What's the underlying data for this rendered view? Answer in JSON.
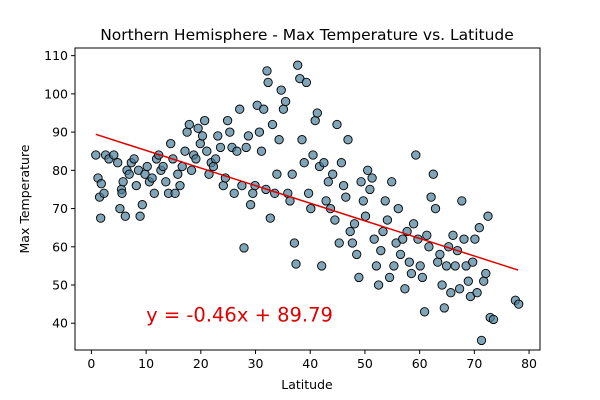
{
  "chart_data": {
    "type": "scatter",
    "title": "Northern Hemisphere - Max Temperature vs. Latitude",
    "xlabel": "Latitude",
    "ylabel": "Max Temperature",
    "xlim": [
      -3,
      82
    ],
    "ylim": [
      33,
      112
    ],
    "xticks": [
      0,
      10,
      20,
      30,
      40,
      50,
      60,
      70,
      80
    ],
    "yticks": [
      40,
      50,
      60,
      70,
      80,
      90,
      100,
      110
    ],
    "grid": false,
    "legend": "none",
    "colors": {
      "point_fill": "#4c7f9a",
      "point_edge": "#000000",
      "regression": "#e00000",
      "annotation": "#e00000"
    },
    "regression": {
      "slope": -0.46,
      "intercept": 89.79,
      "x_start": 0.8,
      "x_end": 78,
      "equation_label": "y = -0.46x + 89.79",
      "label_anchor": [
        10,
        40.4
      ]
    },
    "points": [
      [
        0.8,
        84
      ],
      [
        1.2,
        78
      ],
      [
        1.5,
        73
      ],
      [
        1.7,
        67.5
      ],
      [
        2.3,
        74
      ],
      [
        1.8,
        76.5
      ],
      [
        2.6,
        84
      ],
      [
        3.2,
        83
      ],
      [
        4.1,
        84
      ],
      [
        4.8,
        82
      ],
      [
        5.2,
        70
      ],
      [
        5.5,
        75
      ],
      [
        5.8,
        77
      ],
      [
        5.6,
        74
      ],
      [
        6.2,
        68
      ],
      [
        6.5,
        80
      ],
      [
        6.9,
        79
      ],
      [
        7.3,
        82
      ],
      [
        7.8,
        83
      ],
      [
        8.2,
        76
      ],
      [
        8.6,
        80
      ],
      [
        8.9,
        68
      ],
      [
        9.3,
        71
      ],
      [
        9.8,
        79
      ],
      [
        10.2,
        81
      ],
      [
        10.6,
        77
      ],
      [
        11.1,
        78
      ],
      [
        11.5,
        74
      ],
      [
        11.9,
        83
      ],
      [
        12.3,
        84
      ],
      [
        12.7,
        80
      ],
      [
        13.1,
        81
      ],
      [
        13.6,
        77
      ],
      [
        14.1,
        74
      ],
      [
        14.5,
        87
      ],
      [
        14.9,
        83
      ],
      [
        15.3,
        74
      ],
      [
        15.8,
        79
      ],
      [
        16.2,
        76
      ],
      [
        16.6,
        81
      ],
      [
        17.1,
        85
      ],
      [
        17.5,
        90
      ],
      [
        17.9,
        92
      ],
      [
        18.3,
        80
      ],
      [
        18.7,
        84
      ],
      [
        19.1,
        83
      ],
      [
        19.5,
        91
      ],
      [
        19.9,
        87
      ],
      [
        20.3,
        89
      ],
      [
        20.7,
        93
      ],
      [
        21.1,
        85
      ],
      [
        21.5,
        79
      ],
      [
        21.9,
        82
      ],
      [
        22.3,
        81
      ],
      [
        22.7,
        83
      ],
      [
        23.1,
        89
      ],
      [
        23.6,
        86
      ],
      [
        24.1,
        76
      ],
      [
        24.5,
        78
      ],
      [
        24.9,
        93
      ],
      [
        25.3,
        90
      ],
      [
        25.7,
        86
      ],
      [
        26.1,
        74
      ],
      [
        26.6,
        85
      ],
      [
        27.1,
        96
      ],
      [
        27.5,
        76
      ],
      [
        27.9,
        59.7
      ],
      [
        28.3,
        86
      ],
      [
        28.7,
        89
      ],
      [
        29.1,
        71
      ],
      [
        29.5,
        74
      ],
      [
        29.9,
        76
      ],
      [
        30.3,
        97
      ],
      [
        30.7,
        90
      ],
      [
        31.1,
        85
      ],
      [
        31.5,
        96
      ],
      [
        31.9,
        75
      ],
      [
        32.1,
        106
      ],
      [
        32.3,
        103
      ],
      [
        32.7,
        67.5
      ],
      [
        33.1,
        92
      ],
      [
        33.5,
        74
      ],
      [
        33.9,
        79
      ],
      [
        34.3,
        88
      ],
      [
        34.7,
        101
      ],
      [
        35.1,
        96
      ],
      [
        35.5,
        98
      ],
      [
        35.9,
        74
      ],
      [
        36.3,
        72
      ],
      [
        36.7,
        79
      ],
      [
        37.1,
        61
      ],
      [
        37.4,
        55.5
      ],
      [
        37.7,
        107.5
      ],
      [
        38.1,
        104
      ],
      [
        38.5,
        88
      ],
      [
        38.9,
        82
      ],
      [
        39.3,
        103
      ],
      [
        39.7,
        74
      ],
      [
        40.1,
        70
      ],
      [
        40.5,
        84
      ],
      [
        40.9,
        93
      ],
      [
        41.3,
        95
      ],
      [
        41.7,
        81
      ],
      [
        42.1,
        55
      ],
      [
        42.5,
        82
      ],
      [
        42.9,
        72
      ],
      [
        43.3,
        77
      ],
      [
        43.7,
        70
      ],
      [
        44.1,
        79
      ],
      [
        44.5,
        67
      ],
      [
        44.9,
        92
      ],
      [
        45.3,
        61
      ],
      [
        45.7,
        82
      ],
      [
        46.1,
        76
      ],
      [
        46.5,
        73
      ],
      [
        46.9,
        88
      ],
      [
        47.3,
        64
      ],
      [
        47.7,
        61
      ],
      [
        48.1,
        66
      ],
      [
        48.5,
        58
      ],
      [
        48.9,
        52
      ],
      [
        49.3,
        77
      ],
      [
        49.7,
        72
      ],
      [
        50.1,
        68
      ],
      [
        50.5,
        80
      ],
      [
        50.9,
        75
      ],
      [
        51.3,
        78
      ],
      [
        51.7,
        62
      ],
      [
        52.1,
        55
      ],
      [
        52.5,
        50
      ],
      [
        52.9,
        59
      ],
      [
        53.3,
        64
      ],
      [
        53.7,
        72
      ],
      [
        54.1,
        67
      ],
      [
        54.5,
        52
      ],
      [
        54.9,
        77
      ],
      [
        55.3,
        55
      ],
      [
        55.7,
        61
      ],
      [
        56.1,
        70
      ],
      [
        56.5,
        58
      ],
      [
        56.9,
        62
      ],
      [
        57.3,
        49
      ],
      [
        57.7,
        64
      ],
      [
        58.1,
        56
      ],
      [
        58.5,
        53
      ],
      [
        58.9,
        66
      ],
      [
        59.3,
        84
      ],
      [
        59.7,
        62
      ],
      [
        60.1,
        55
      ],
      [
        60.5,
        52
      ],
      [
        60.9,
        43
      ],
      [
        61.3,
        63
      ],
      [
        61.7,
        60
      ],
      [
        62.1,
        73
      ],
      [
        62.5,
        79
      ],
      [
        62.9,
        70
      ],
      [
        63.3,
        56
      ],
      [
        63.7,
        58
      ],
      [
        64.1,
        50
      ],
      [
        64.5,
        44
      ],
      [
        64.9,
        55
      ],
      [
        65.3,
        60
      ],
      [
        65.7,
        48
      ],
      [
        66.1,
        63
      ],
      [
        66.5,
        55
      ],
      [
        66.9,
        59
      ],
      [
        67.3,
        49
      ],
      [
        67.7,
        72
      ],
      [
        68.1,
        62
      ],
      [
        68.5,
        55
      ],
      [
        68.9,
        51
      ],
      [
        69.3,
        47
      ],
      [
        69.7,
        56
      ],
      [
        70.1,
        62
      ],
      [
        70.5,
        48
      ],
      [
        70.9,
        65
      ],
      [
        71.3,
        35.5
      ],
      [
        71.7,
        51
      ],
      [
        72.1,
        53
      ],
      [
        72.5,
        68
      ],
      [
        72.9,
        41.5
      ],
      [
        73.5,
        41
      ],
      [
        77.5,
        46
      ],
      [
        78.1,
        45
      ]
    ]
  }
}
